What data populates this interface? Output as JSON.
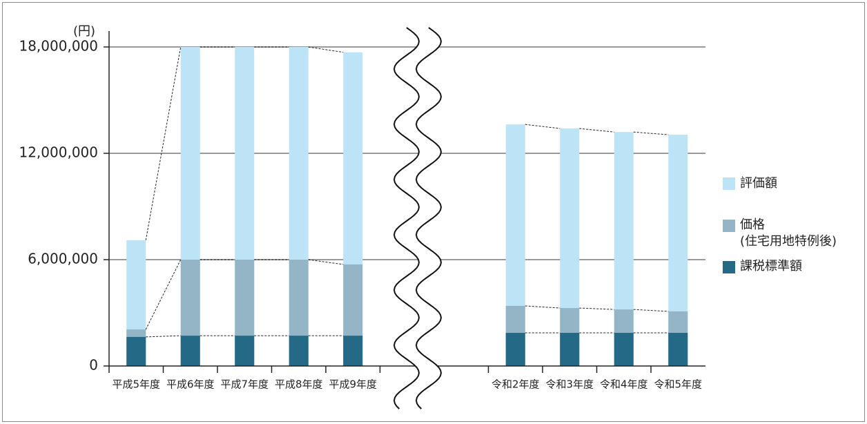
{
  "chart_data": {
    "type": "bar",
    "y_unit": "(円)",
    "categories": [
      "平成5年度",
      "平成6年度",
      "平成7年度",
      "平成8年度",
      "平成9年度",
      "令和2年度",
      "令和3年度",
      "令和4年度",
      "令和5年度"
    ],
    "series": [
      {
        "name": "評価額",
        "color": "#bde3f7",
        "values": [
          7100000,
          18000000,
          18000000,
          18000000,
          17700000,
          13630000,
          13400000,
          13200000,
          13050000
        ]
      },
      {
        "name": "価格\n(住宅用地特例後)",
        "color": "#93b5c6",
        "values": [
          2060000,
          6000000,
          6000000,
          6000000,
          5730000,
          3390000,
          3270000,
          3190000,
          3080000
        ]
      },
      {
        "name": "課税標準額",
        "color": "#246a87",
        "values": [
          1640000,
          1710000,
          1710000,
          1710000,
          1710000,
          1870000,
          1870000,
          1870000,
          1870000
        ]
      }
    ],
    "ylim": [
      0,
      18000000
    ],
    "yticks": [
      0,
      {
        "value": 6000000,
        "label": "6,000,000"
      },
      {
        "value": 12000000,
        "label": "12,000,000"
      },
      {
        "value": 18000000,
        "label": "18,000,000"
      }
    ],
    "grid": true
  }
}
